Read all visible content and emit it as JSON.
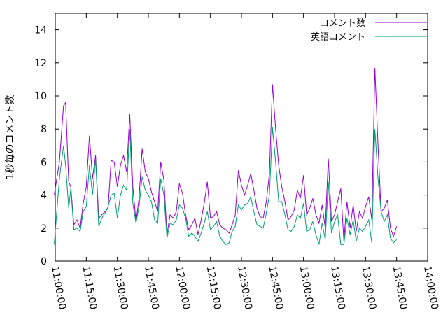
{
  "chart_data": {
    "type": "line",
    "xlabel": "",
    "ylabel": "1秒毎のコメント数",
    "ylim": [
      0,
      15
    ],
    "xlim_seconds": [
      39600,
      50400
    ],
    "yticks": [
      0,
      2,
      4,
      6,
      8,
      10,
      12,
      14
    ],
    "xticks": [
      "11:00:00",
      "11:15:00",
      "11:30:00",
      "11:45:00",
      "12:00:00",
      "12:15:00",
      "12:30:00",
      "12:45:00",
      "13:00:00",
      "13:15:00",
      "13:30:00",
      "13:45:00",
      "14:00:00"
    ],
    "x_tick_seconds": [
      39600,
      40500,
      41400,
      42300,
      43200,
      44100,
      45000,
      45900,
      46800,
      47700,
      48600,
      49500,
      50400
    ],
    "legend_position": "top-right",
    "grid": false,
    "series": [
      {
        "name": "コメント数",
        "color": "#9400d3",
        "x": [
          "10:59:30",
          "11:02:00",
          "11:04:00",
          "11:05:00",
          "11:06:30",
          "11:07:30",
          "11:09:00",
          "11:10:30",
          "11:12:00",
          "11:13:30",
          "11:15:00",
          "11:16:30",
          "11:18:00",
          "11:19:30",
          "11:21:00",
          "11:22:30",
          "11:24:00",
          "11:25:30",
          "11:27:00",
          "11:28:30",
          "11:30:00",
          "11:31:30",
          "11:33:00",
          "11:34:30",
          "11:36:00",
          "11:37:30",
          "11:39:00",
          "11:40:30",
          "11:42:00",
          "11:43:30",
          "11:45:00",
          "11:46:30",
          "11:48:00",
          "11:49:30",
          "11:51:00",
          "11:52:30",
          "11:54:00",
          "11:55:30",
          "11:57:00",
          "11:58:30",
          "12:00:00",
          "12:01:30",
          "12:03:00",
          "12:04:30",
          "12:06:00",
          "12:07:30",
          "12:09:00",
          "12:10:30",
          "12:12:00",
          "12:13:30",
          "12:15:00",
          "12:16:30",
          "12:18:00",
          "12:19:30",
          "12:21:00",
          "12:22:30",
          "12:24:00",
          "12:25:30",
          "12:27:00",
          "12:28:30",
          "12:30:00",
          "12:31:30",
          "12:33:00",
          "12:34:30",
          "12:36:00",
          "12:37:30",
          "12:39:00",
          "12:40:30",
          "12:42:00",
          "12:43:30",
          "12:45:00",
          "12:46:30",
          "12:48:00",
          "12:49:30",
          "12:51:00",
          "12:52:30",
          "12:54:00",
          "12:55:30",
          "12:57:00",
          "12:58:30",
          "13:00:00",
          "13:01:30",
          "13:03:00",
          "13:04:30",
          "13:06:00",
          "13:07:30",
          "13:09:00",
          "13:10:30",
          "13:12:00",
          "13:13:30",
          "13:15:00",
          "13:16:30",
          "13:18:00",
          "13:19:30",
          "13:21:00",
          "13:22:30",
          "13:24:00",
          "13:25:30",
          "13:27:00",
          "13:28:30",
          "13:30:00",
          "13:31:30",
          "13:33:00",
          "13:34:30",
          "13:36:00",
          "13:37:30",
          "13:39:00",
          "13:40:30",
          "13:42:00",
          "13:43:30",
          "13:45:00"
        ],
        "y": [
          4.0,
          6.0,
          9.4,
          9.6,
          4.8,
          4.5,
          2.2,
          2.5,
          2.0,
          3.5,
          4.5,
          7.6,
          5.0,
          6.4,
          2.6,
          2.8,
          3.0,
          3.2,
          6.1,
          6.0,
          4.5,
          5.8,
          6.4,
          5.4,
          8.9,
          4.5,
          2.4,
          3.8,
          6.8,
          5.4,
          5.0,
          4.2,
          3.6,
          3.0,
          6.0,
          4.9,
          1.6,
          2.8,
          2.6,
          3.0,
          4.7,
          4.1,
          2.8,
          1.9,
          2.2,
          2.6,
          1.6,
          2.5,
          3.5,
          4.8,
          2.6,
          2.7,
          3.0,
          2.2,
          2.0,
          1.9,
          1.7,
          2.2,
          2.8,
          5.5,
          4.6,
          4.0,
          4.6,
          5.3,
          4.3,
          3.2,
          2.7,
          2.6,
          3.6,
          5.3,
          10.7,
          8.0,
          5.8,
          4.5,
          3.6,
          2.5,
          2.7,
          3.1,
          4.3,
          3.8,
          5.2,
          2.8,
          3.2,
          3.8,
          2.8,
          2.3,
          3.4,
          2.0,
          6.2,
          2.4,
          2.8,
          3.6,
          4.4,
          1.2,
          3.6,
          2.0,
          3.4,
          1.8,
          3.0,
          2.6,
          3.3,
          3.9,
          2.5,
          11.7,
          7.0,
          3.0,
          3.2,
          3.7,
          2.0,
          1.5,
          2.1
        ]
      },
      {
        "name": "英語コメント",
        "color": "#009e73",
        "x": [
          "10:59:30",
          "11:02:00",
          "11:04:00",
          "11:05:00",
          "11:06:30",
          "11:07:30",
          "11:09:00",
          "11:10:30",
          "11:12:00",
          "11:13:30",
          "11:15:00",
          "11:16:30",
          "11:18:00",
          "11:19:30",
          "11:21:00",
          "11:22:30",
          "11:24:00",
          "11:25:30",
          "11:27:00",
          "11:28:30",
          "11:30:00",
          "11:31:30",
          "11:33:00",
          "11:34:30",
          "11:36:00",
          "11:37:30",
          "11:39:00",
          "11:40:30",
          "11:42:00",
          "11:43:30",
          "11:45:00",
          "11:46:30",
          "11:48:00",
          "11:49:30",
          "11:51:00",
          "11:52:30",
          "11:54:00",
          "11:55:30",
          "11:57:00",
          "11:58:30",
          "12:00:00",
          "12:01:30",
          "12:03:00",
          "12:04:30",
          "12:06:00",
          "12:07:30",
          "12:09:00",
          "12:10:30",
          "12:12:00",
          "12:13:30",
          "12:15:00",
          "12:16:30",
          "12:18:00",
          "12:19:30",
          "12:21:00",
          "12:22:30",
          "12:24:00",
          "12:25:30",
          "12:27:00",
          "12:28:30",
          "12:30:00",
          "12:31:30",
          "12:33:00",
          "12:34:30",
          "12:36:00",
          "12:37:30",
          "12:39:00",
          "12:40:30",
          "12:42:00",
          "12:43:30",
          "12:45:00",
          "12:46:30",
          "12:48:00",
          "12:49:30",
          "12:51:00",
          "12:52:30",
          "12:54:00",
          "12:55:30",
          "12:57:00",
          "12:58:30",
          "13:00:00",
          "13:01:30",
          "13:03:00",
          "13:04:30",
          "13:06:00",
          "13:07:30",
          "13:09:00",
          "13:10:30",
          "13:12:00",
          "13:13:30",
          "13:15:00",
          "13:16:30",
          "13:18:00",
          "13:19:30",
          "13:21:00",
          "13:22:30",
          "13:24:00",
          "13:25:30",
          "13:27:00",
          "13:28:30",
          "13:30:00",
          "13:31:30",
          "13:33:00",
          "13:34:30",
          "13:36:00",
          "13:37:30",
          "13:39:00",
          "13:40:30",
          "13:42:00",
          "13:43:30",
          "13:45:00"
        ],
        "y": [
          1.0,
          5.0,
          7.0,
          5.8,
          3.2,
          4.4,
          1.9,
          2.0,
          1.8,
          3.0,
          3.3,
          5.8,
          4.0,
          6.2,
          2.1,
          2.6,
          2.9,
          3.3,
          4.0,
          4.1,
          2.6,
          4.0,
          4.6,
          4.3,
          8.0,
          3.5,
          2.3,
          3.3,
          5.1,
          4.3,
          4.0,
          3.6,
          2.5,
          2.3,
          5.0,
          4.0,
          1.4,
          2.3,
          2.2,
          2.5,
          3.4,
          3.2,
          2.6,
          1.5,
          1.7,
          1.5,
          1.2,
          1.7,
          2.3,
          3.0,
          1.9,
          2.1,
          2.4,
          1.5,
          1.2,
          1.0,
          1.1,
          1.8,
          2.1,
          3.4,
          3.1,
          3.4,
          3.5,
          3.9,
          3.0,
          2.2,
          2.1,
          2.0,
          2.9,
          4.0,
          8.1,
          6.0,
          3.6,
          3.6,
          2.8,
          1.9,
          1.8,
          2.1,
          2.8,
          2.6,
          3.5,
          1.8,
          1.9,
          2.4,
          1.6,
          1.0,
          2.3,
          1.3,
          4.8,
          1.7,
          2.4,
          2.8,
          1.0,
          1.0,
          2.6,
          1.6,
          2.5,
          1.2,
          2.0,
          1.8,
          2.1,
          2.5,
          1.1,
          8.0,
          5.0,
          3.0,
          2.4,
          2.8,
          1.4,
          1.1,
          1.3
        ]
      }
    ]
  }
}
